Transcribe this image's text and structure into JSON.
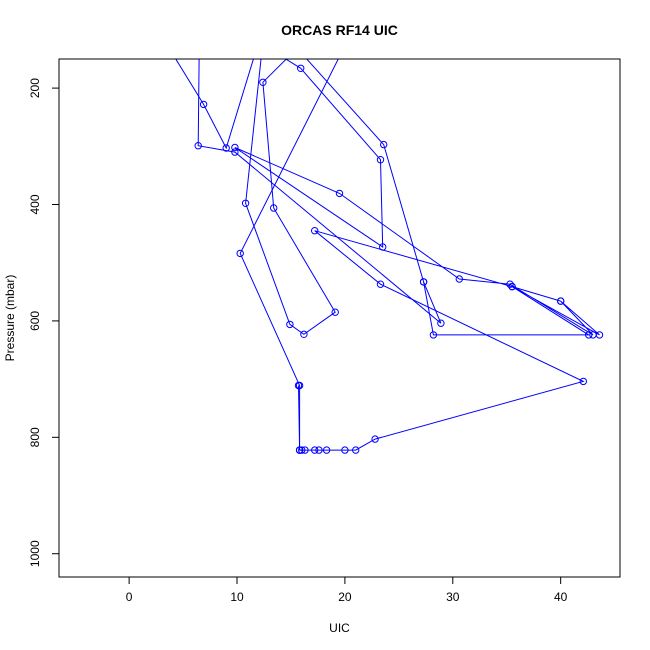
{
  "chart_data": {
    "type": "line",
    "title": "ORCAS RF14 UIC",
    "xlabel": "UIC",
    "ylabel": "Pressure (mbar)",
    "xlim": [
      -6.5,
      45.5
    ],
    "ylim": [
      1040,
      150
    ],
    "y_reversed": true,
    "grid": false,
    "x_ticks": [
      0,
      10,
      20,
      30,
      40
    ],
    "y_ticks": [
      200,
      400,
      600,
      800,
      1000
    ],
    "color": "#0000ff",
    "marker": "open-circle",
    "series": [
      {
        "points": [
          [
            15.8,
            822
          ],
          [
            16.3,
            822
          ],
          [
            17.2,
            822
          ],
          [
            17.6,
            822
          ],
          [
            18.3,
            822
          ],
          [
            20.0,
            822
          ],
          [
            21.0,
            822
          ],
          [
            22.8,
            803
          ],
          [
            42.1,
            704
          ],
          [
            23.3,
            537
          ],
          [
            17.2,
            445
          ],
          [
            35.5,
            541
          ],
          [
            43.6,
            624
          ],
          [
            40.0,
            566
          ],
          [
            43.0,
            624
          ],
          [
            35.3,
            537
          ],
          [
            30.6,
            528
          ],
          [
            19.5,
            381
          ],
          [
            9.8,
            302
          ],
          [
            23.5,
            473
          ],
          [
            23.3,
            323
          ],
          [
            15.9,
            166
          ],
          [
            12.0,
            121
          ],
          [
            9.0,
            303
          ],
          [
            6.9,
            228
          ],
          [
            3.0,
            110
          ]
        ]
      },
      {
        "points": [
          [
            15.8,
            822
          ],
          [
            15.8,
            711
          ],
          [
            10.3,
            484
          ],
          [
            20.2,
            120
          ]
        ]
      },
      {
        "points": [
          [
            16.0,
            822
          ],
          [
            15.8,
            822
          ],
          [
            15.7,
            711
          ]
        ]
      },
      {
        "points": [
          [
            6.5,
            120
          ],
          [
            6.4,
            299
          ],
          [
            9.8,
            310
          ],
          [
            28.9,
            604
          ],
          [
            27.3,
            533
          ],
          [
            23.6,
            297
          ],
          [
            15.0,
            120
          ]
        ]
      },
      {
        "points": [
          [
            16.2,
            120
          ],
          [
            12.4,
            190
          ],
          [
            13.4,
            406
          ],
          [
            19.1,
            585
          ],
          [
            16.2,
            623
          ],
          [
            14.9,
            606
          ],
          [
            10.8,
            398
          ],
          [
            12.4,
            120
          ]
        ]
      },
      {
        "points": [
          [
            40.0,
            566
          ],
          [
            35.5,
            541
          ],
          [
            42.6,
            624
          ],
          [
            28.2,
            624
          ],
          [
            27.3,
            533
          ]
        ]
      }
    ]
  }
}
